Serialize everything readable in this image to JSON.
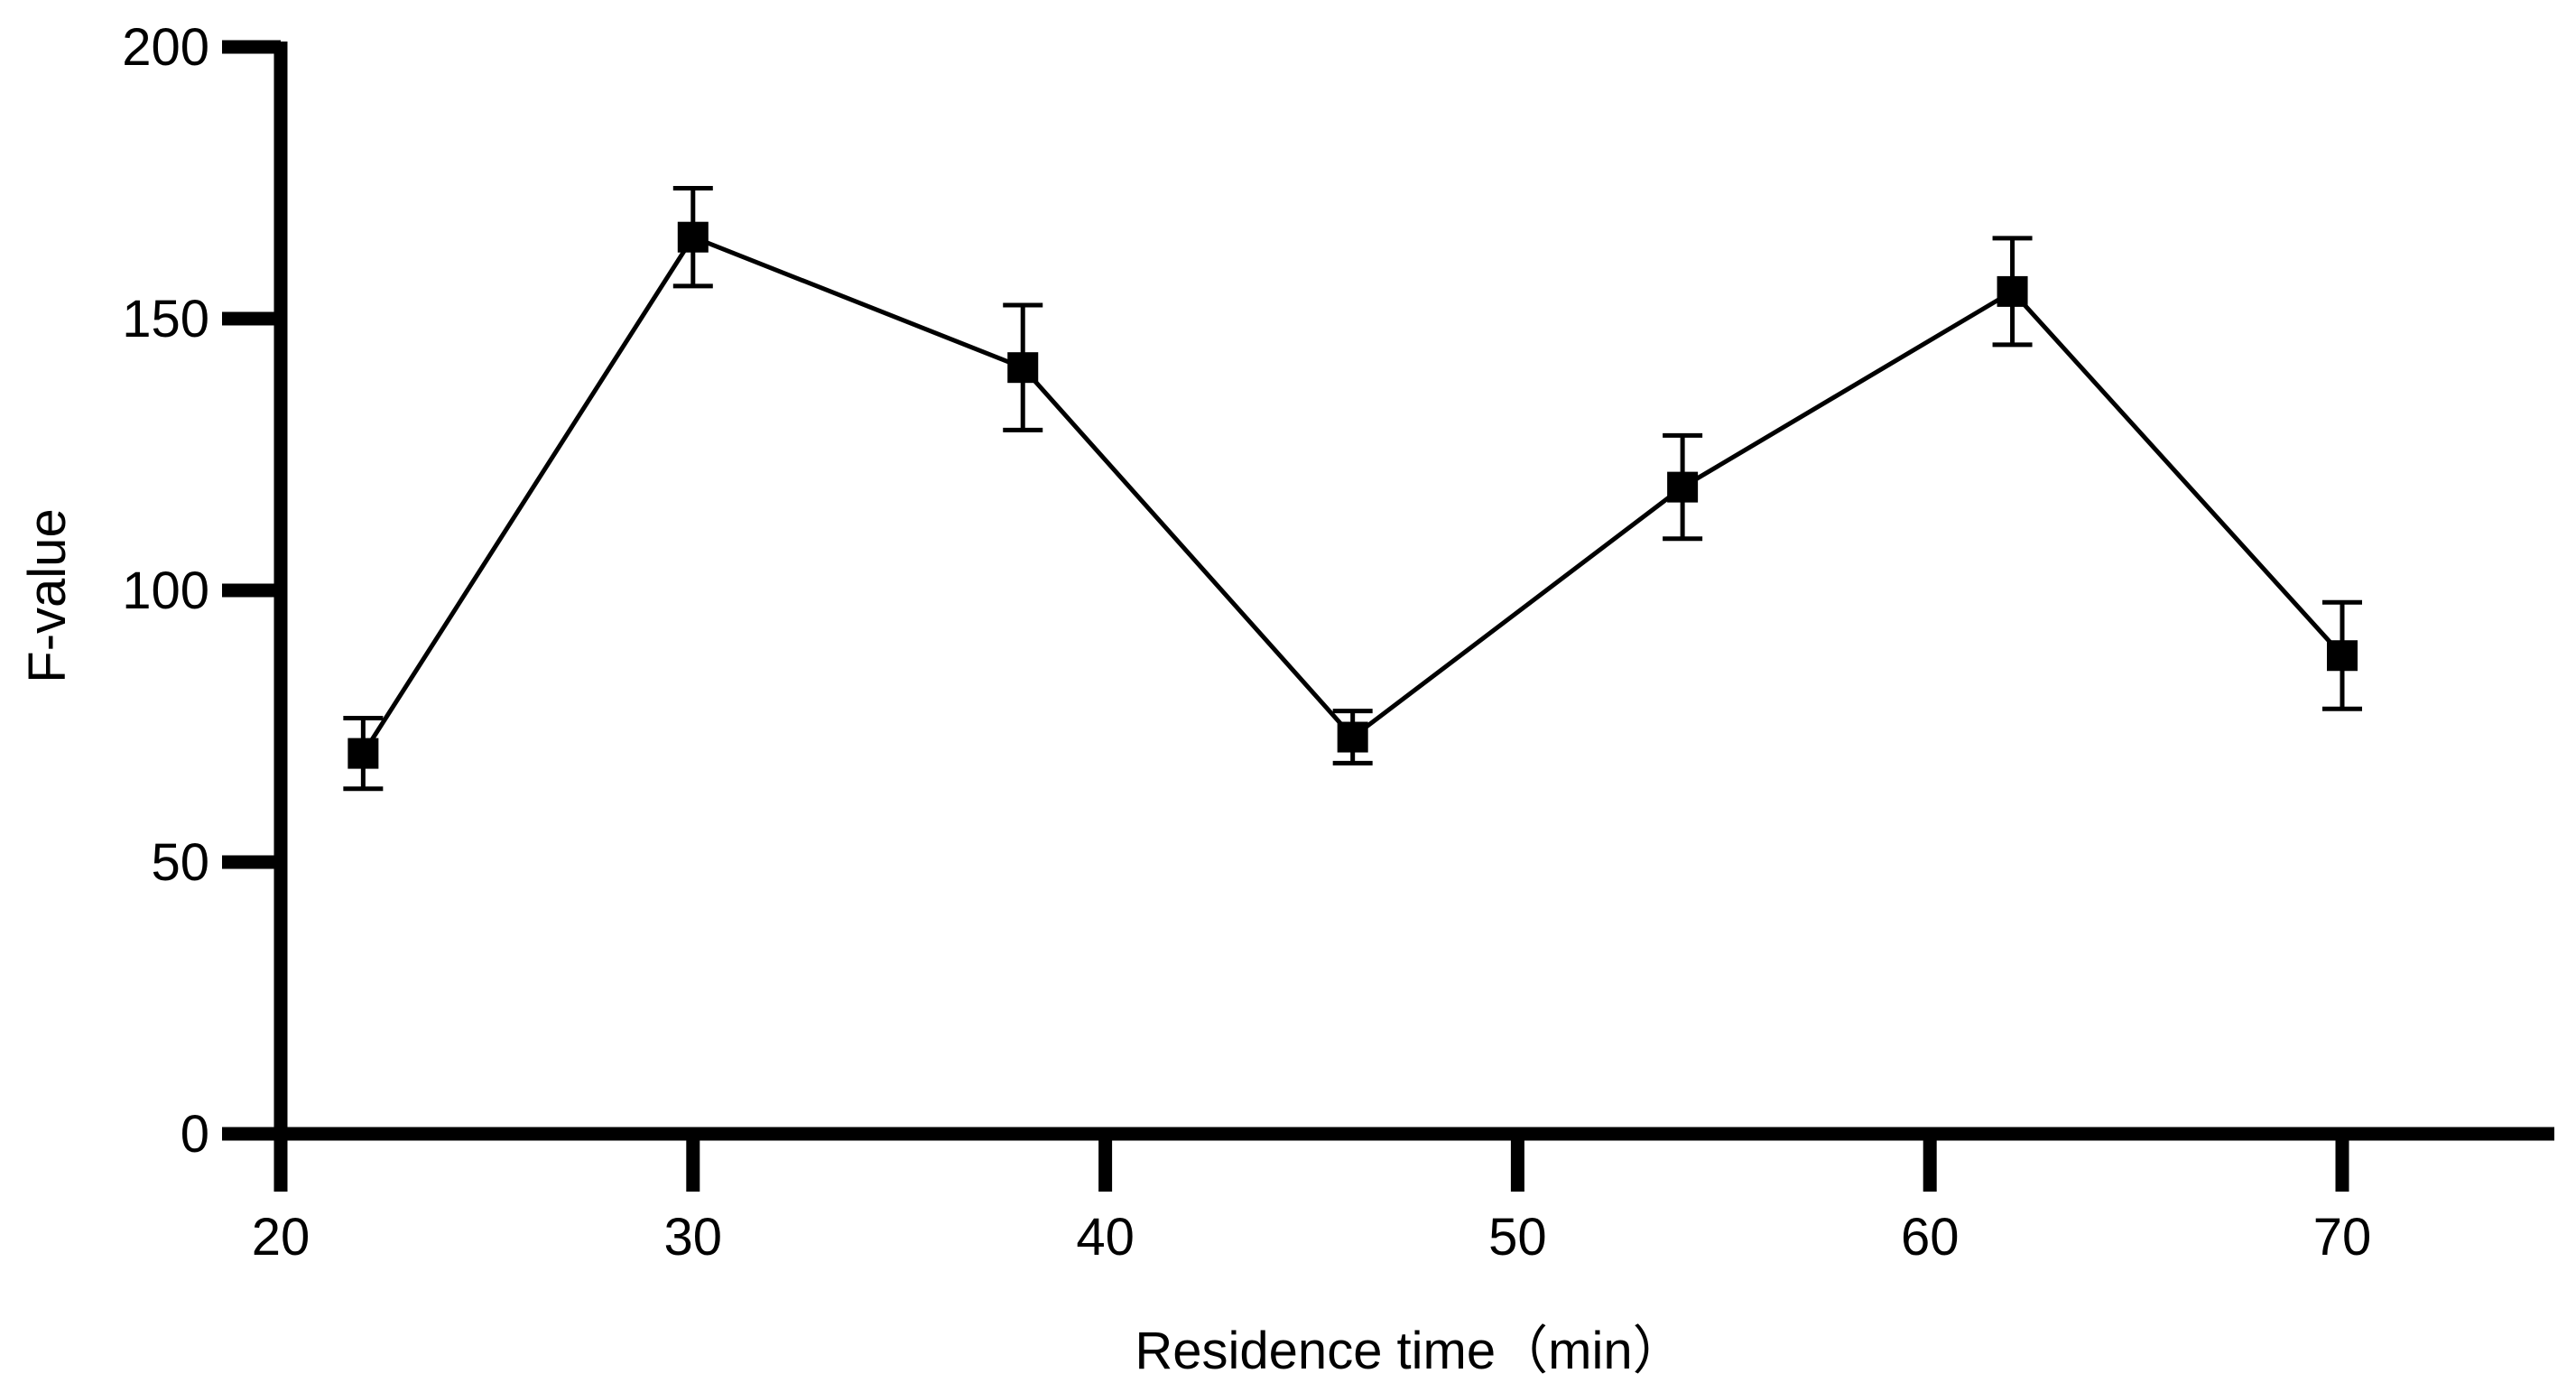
{
  "chart_data": {
    "type": "line",
    "title": "",
    "xlabel": "Residence time（min）",
    "ylabel": "F-value",
    "xlim": [
      20,
      75
    ],
    "ylim": [
      0,
      200
    ],
    "x_ticks": [
      20,
      30,
      40,
      50,
      60,
      70
    ],
    "y_ticks": [
      0,
      50,
      100,
      150,
      200
    ],
    "x_tick_labels": [
      "20",
      "30",
      "40",
      "50",
      "60",
      "70"
    ],
    "y_tick_labels": [
      "0",
      "50",
      "100",
      "150",
      "200"
    ],
    "grid": false,
    "legend": "none",
    "series": [
      {
        "name": "F-value",
        "marker": "square",
        "color": "#000000",
        "x": [
          22,
          30,
          38,
          46,
          54,
          62,
          70
        ],
        "y": [
          70,
          165,
          141,
          73,
          119,
          155,
          88
        ],
        "error": [
          6.5,
          9,
          11.5,
          4.8,
          9.5,
          9.8,
          9.8
        ]
      }
    ]
  }
}
